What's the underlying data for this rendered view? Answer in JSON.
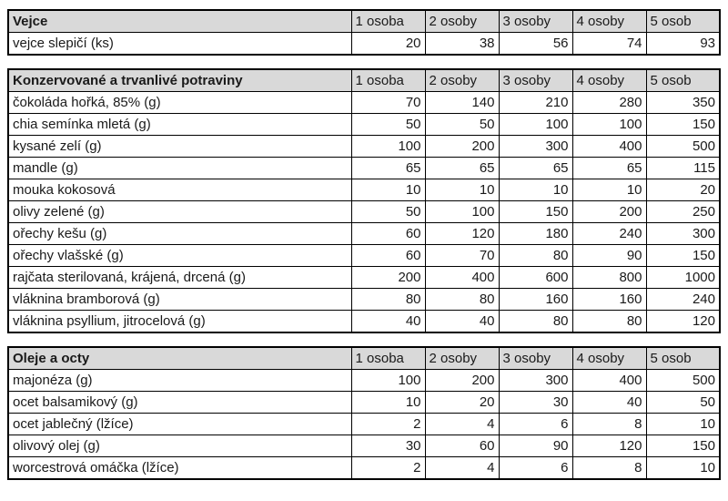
{
  "columns": [
    "1 osoba",
    "2 osoby",
    "3 osoby",
    "4 osoby",
    "5 osob"
  ],
  "colors": {
    "header_bg": "#d9d9d9",
    "border": "#000000",
    "text": "#1a1a1a",
    "page_bg": "#ffffff"
  },
  "tables": [
    {
      "title": "Vejce",
      "rows": [
        {
          "label": "vejce slepičí (ks)",
          "values": [
            20,
            38,
            56,
            74,
            93
          ]
        }
      ]
    },
    {
      "title": "Konzervované a trvanlivé potraviny",
      "rows": [
        {
          "label": "čokoláda hořká, 85% (g)",
          "values": [
            70,
            140,
            210,
            280,
            350
          ]
        },
        {
          "label": "chia semínka mletá (g)",
          "values": [
            50,
            50,
            100,
            100,
            150
          ]
        },
        {
          "label": "kysané zelí (g)",
          "values": [
            100,
            200,
            300,
            400,
            500
          ]
        },
        {
          "label": "mandle (g)",
          "values": [
            65,
            65,
            65,
            65,
            115
          ]
        },
        {
          "label": "mouka kokosová",
          "values": [
            10,
            10,
            10,
            10,
            20
          ]
        },
        {
          "label": "olivy zelené (g)",
          "values": [
            50,
            100,
            150,
            200,
            250
          ]
        },
        {
          "label": "ořechy kešu (g)",
          "values": [
            60,
            120,
            180,
            240,
            300
          ]
        },
        {
          "label": "ořechy vlašské (g)",
          "values": [
            60,
            70,
            80,
            90,
            150
          ]
        },
        {
          "label": "rajčata sterilovaná, krájená, drcená (g)",
          "values": [
            200,
            400,
            600,
            800,
            1000
          ]
        },
        {
          "label": "vláknina bramborová (g)",
          "values": [
            80,
            80,
            160,
            160,
            240
          ]
        },
        {
          "label": "vláknina psyllium, jitrocelová (g)",
          "values": [
            40,
            40,
            80,
            80,
            120
          ]
        }
      ]
    },
    {
      "title": "Oleje a octy",
      "rows": [
        {
          "label": "majonéza (g)",
          "values": [
            100,
            200,
            300,
            400,
            500
          ]
        },
        {
          "label": "ocet balsamikový (g)",
          "values": [
            10,
            20,
            30,
            40,
            50
          ]
        },
        {
          "label": "ocet jablečný (lžíce)",
          "values": [
            2,
            4,
            6,
            8,
            10
          ]
        },
        {
          "label": "olivový olej (g)",
          "values": [
            30,
            60,
            90,
            120,
            150
          ]
        },
        {
          "label": "worcestrová omáčka (lžíce)",
          "values": [
            2,
            4,
            6,
            8,
            10
          ]
        }
      ]
    }
  ]
}
